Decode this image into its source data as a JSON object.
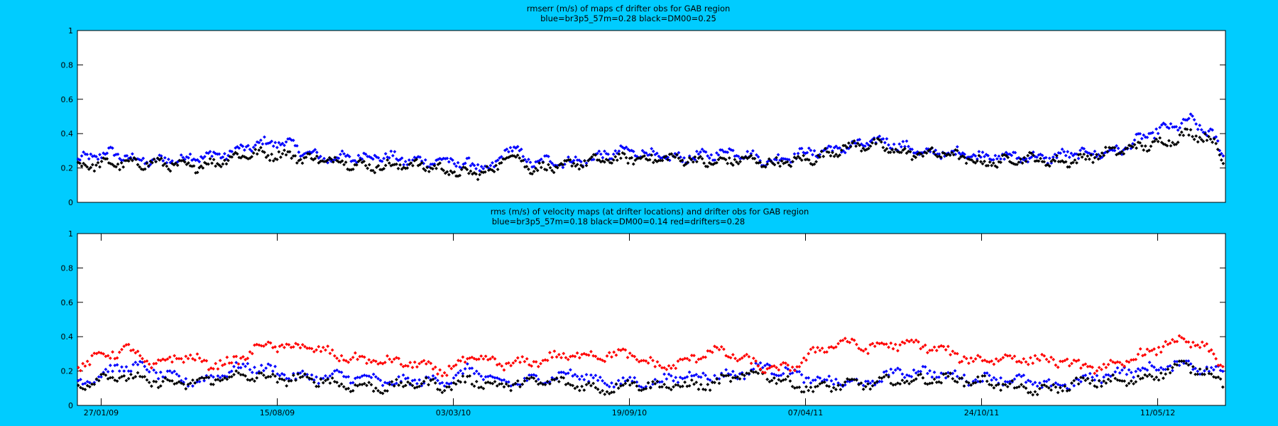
{
  "chart_data": [
    {
      "type": "scatter",
      "title": "rmserr (m/s) of maps cf drifter obs for GAB region",
      "subtitle": "blue=br3p5_57m=0.28 black=DM00=0.25",
      "xlabel": "",
      "ylabel": "",
      "ylim": [
        0,
        1
      ],
      "yticks": [
        "0",
        "0.2",
        "0.4",
        "0.6",
        "0.8",
        "1"
      ],
      "xticks": [],
      "x_day_range": [
        0,
        1650
      ],
      "grid": false,
      "colors": {
        "blue": "#0000ff",
        "black": "#000000"
      },
      "series": [
        {
          "color": "#0000ff",
          "x_day": [
            0,
            50,
            100,
            150,
            200,
            250,
            300,
            350,
            400,
            450,
            500,
            550,
            600,
            620,
            650,
            700,
            750,
            800,
            850,
            900,
            950,
            1000,
            1050,
            1100,
            1150,
            1200,
            1250,
            1300,
            1350,
            1400,
            1450,
            1500,
            1550,
            1600,
            1630,
            1650
          ],
          "values": [
            0.24,
            0.28,
            0.25,
            0.24,
            0.28,
            0.33,
            0.34,
            0.27,
            0.25,
            0.27,
            0.24,
            0.22,
            0.21,
            0.34,
            0.22,
            0.24,
            0.27,
            0.29,
            0.27,
            0.26,
            0.3,
            0.24,
            0.28,
            0.33,
            0.35,
            0.31,
            0.29,
            0.26,
            0.28,
            0.25,
            0.29,
            0.31,
            0.4,
            0.49,
            0.4,
            0.24
          ]
        },
        {
          "color": "#000000",
          "x_day": [
            0,
            50,
            100,
            150,
            200,
            250,
            300,
            350,
            400,
            450,
            500,
            550,
            600,
            620,
            650,
            700,
            750,
            800,
            850,
            900,
            950,
            1000,
            1050,
            1100,
            1150,
            1200,
            1250,
            1300,
            1350,
            1400,
            1450,
            1500,
            1550,
            1600,
            1630,
            1650
          ],
          "values": [
            0.2,
            0.24,
            0.22,
            0.21,
            0.24,
            0.27,
            0.29,
            0.24,
            0.22,
            0.22,
            0.2,
            0.18,
            0.18,
            0.28,
            0.2,
            0.22,
            0.23,
            0.27,
            0.25,
            0.23,
            0.26,
            0.21,
            0.26,
            0.31,
            0.33,
            0.29,
            0.27,
            0.24,
            0.25,
            0.23,
            0.27,
            0.29,
            0.35,
            0.4,
            0.35,
            0.22
          ]
        }
      ]
    },
    {
      "type": "scatter",
      "title": "rms (m/s) of velocity maps (at drifter locations) and drifter obs for GAB region",
      "subtitle": "blue=br3p5_57m=0.18  black=DM00=0.14 red=drifters=0.28",
      "xlabel": "",
      "ylabel": "",
      "ylim": [
        0,
        1
      ],
      "yticks": [
        "0",
        "0.2",
        "0.4",
        "0.6",
        "0.8",
        "1"
      ],
      "xticks": [
        "27/01/09",
        "15/08/09",
        "03/03/10",
        "19/09/10",
        "07/04/11",
        "24/10/11",
        "11/05/12"
      ],
      "xtick_days": [
        0,
        200,
        400,
        600,
        800,
        1000,
        1200
      ],
      "x_day_range": [
        -27,
        1277
      ],
      "grid": false,
      "colors": {
        "blue": "#0000ff",
        "black": "#000000",
        "red": "#ff0000"
      },
      "series": [
        {
          "color": "#0000ff",
          "x_day": [
            -27,
            0,
            30,
            60,
            90,
            120,
            150,
            180,
            210,
            240,
            270,
            300,
            330,
            360,
            390,
            420,
            450,
            480,
            510,
            540,
            570,
            600,
            630,
            660,
            690,
            720,
            750,
            780,
            810,
            840,
            870,
            900,
            930,
            960,
            990,
            1020,
            1050,
            1080,
            1110,
            1140,
            1170,
            1200,
            1230,
            1260,
            1277
          ],
          "values": [
            0.14,
            0.18,
            0.22,
            0.2,
            0.16,
            0.15,
            0.2,
            0.22,
            0.19,
            0.17,
            0.16,
            0.15,
            0.14,
            0.16,
            0.13,
            0.2,
            0.14,
            0.15,
            0.16,
            0.17,
            0.14,
            0.15,
            0.13,
            0.16,
            0.17,
            0.19,
            0.23,
            0.18,
            0.14,
            0.15,
            0.13,
            0.18,
            0.19,
            0.19,
            0.16,
            0.15,
            0.13,
            0.12,
            0.15,
            0.17,
            0.19,
            0.22,
            0.26,
            0.2,
            0.18
          ]
        },
        {
          "color": "#000000",
          "x_day": [
            -27,
            0,
            30,
            60,
            90,
            120,
            150,
            180,
            210,
            240,
            270,
            300,
            330,
            360,
            390,
            420,
            450,
            480,
            510,
            540,
            570,
            600,
            630,
            660,
            690,
            720,
            750,
            780,
            810,
            840,
            870,
            900,
            930,
            960,
            990,
            1020,
            1050,
            1080,
            1110,
            1140,
            1170,
            1200,
            1230,
            1260,
            1277
          ],
          "values": [
            0.1,
            0.15,
            0.17,
            0.15,
            0.12,
            0.13,
            0.17,
            0.18,
            0.15,
            0.14,
            0.12,
            0.12,
            0.11,
            0.12,
            0.1,
            0.16,
            0.12,
            0.12,
            0.13,
            0.13,
            0.1,
            0.12,
            0.1,
            0.12,
            0.13,
            0.16,
            0.18,
            0.13,
            0.11,
            0.12,
            0.11,
            0.14,
            0.16,
            0.16,
            0.13,
            0.12,
            0.1,
            0.1,
            0.12,
            0.13,
            0.15,
            0.19,
            0.23,
            0.17,
            0.13
          ]
        },
        {
          "color": "#ff0000",
          "x_day": [
            -27,
            0,
            30,
            60,
            90,
            120,
            150,
            180,
            210,
            240,
            270,
            300,
            330,
            360,
            390,
            420,
            450,
            480,
            510,
            540,
            570,
            600,
            630,
            660,
            690,
            720,
            750,
            780,
            810,
            840,
            870,
            900,
            930,
            960,
            990,
            1020,
            1050,
            1080,
            1110,
            1140,
            1170,
            1200,
            1230,
            1260,
            1277
          ],
          "values": [
            0.22,
            0.3,
            0.34,
            0.22,
            0.28,
            0.25,
            0.26,
            0.34,
            0.33,
            0.34,
            0.3,
            0.26,
            0.24,
            0.24,
            0.21,
            0.28,
            0.23,
            0.24,
            0.29,
            0.3,
            0.28,
            0.29,
            0.24,
            0.25,
            0.31,
            0.28,
            0.23,
            0.22,
            0.3,
            0.36,
            0.34,
            0.37,
            0.35,
            0.3,
            0.26,
            0.29,
            0.27,
            0.25,
            0.23,
            0.23,
            0.27,
            0.32,
            0.38,
            0.32,
            0.24
          ]
        }
      ]
    }
  ]
}
